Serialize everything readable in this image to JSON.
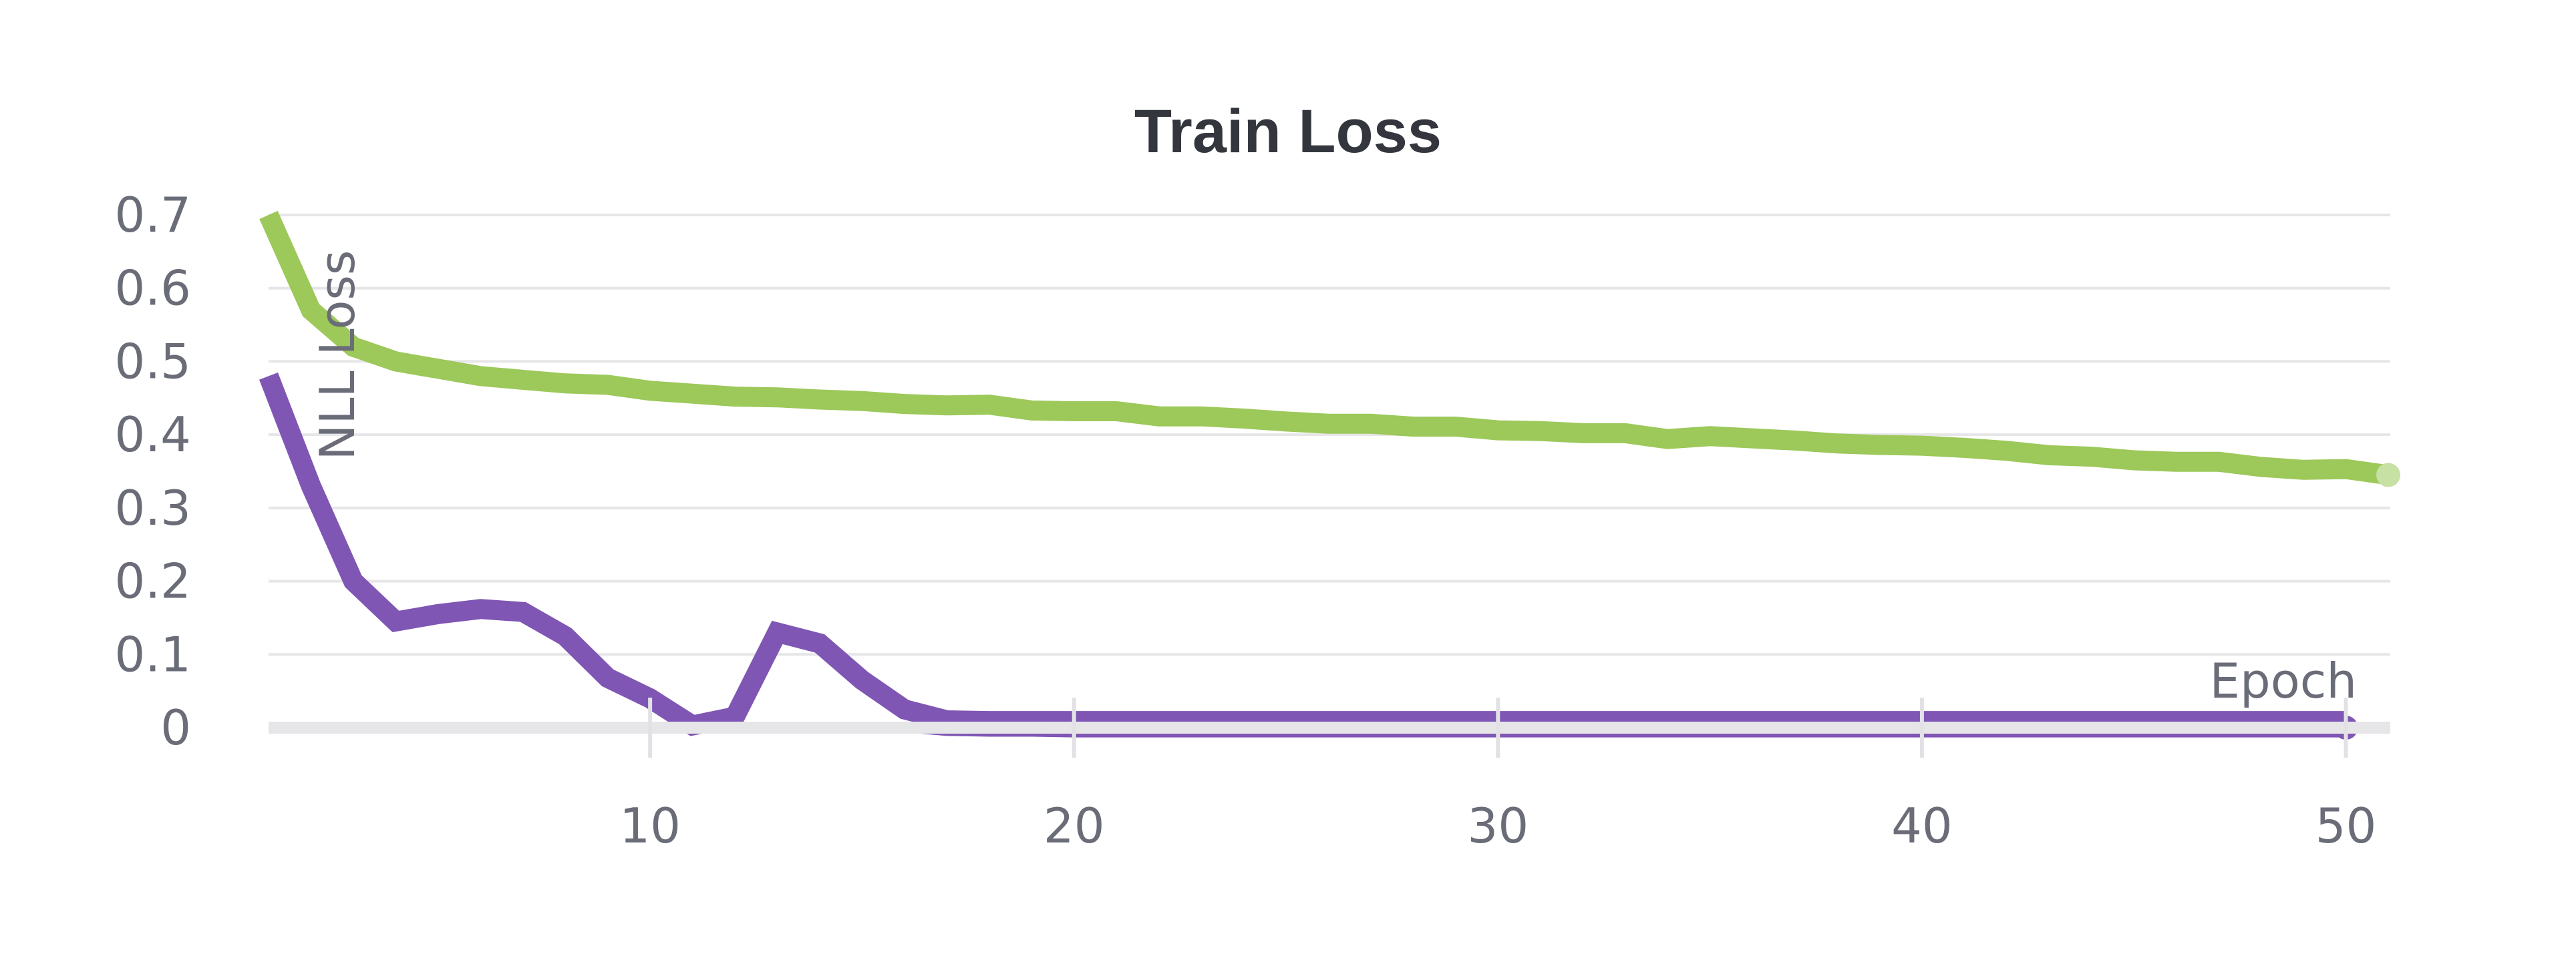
{
  "chart_data": {
    "type": "line",
    "title": "Train Loss",
    "xlabel": "Epoch",
    "ylabel": "NLL Loss",
    "xlim": [
      1,
      51
    ],
    "ylim": [
      0,
      0.7
    ],
    "x_ticks": [
      10,
      20,
      30,
      40,
      50
    ],
    "x_tick_labels": [
      "10",
      "20",
      "30",
      "40",
      "50"
    ],
    "y_ticks": [
      0,
      0.1,
      0.2,
      0.3,
      0.4,
      0.5,
      0.6,
      0.7
    ],
    "y_tick_labels": [
      "0",
      "0.1",
      "0.2",
      "0.3",
      "0.4",
      "0.5",
      "0.6",
      "0.7"
    ],
    "grid": "horizontal",
    "legend": "none",
    "series": [
      {
        "color": "#9dc85a",
        "x": [
          1,
          2,
          3,
          4,
          5,
          6,
          7,
          8,
          9,
          10,
          11,
          12,
          13,
          14,
          15,
          16,
          17,
          18,
          19,
          20,
          21,
          22,
          23,
          24,
          25,
          26,
          27,
          28,
          29,
          30,
          31,
          32,
          33,
          34,
          35,
          36,
          37,
          38,
          39,
          40,
          41,
          42,
          43,
          44,
          45,
          46,
          47,
          48,
          49,
          50,
          51
        ],
        "values": [
          0.7,
          0.57,
          0.52,
          0.5,
          0.49,
          0.48,
          0.475,
          0.47,
          0.468,
          0.46,
          0.456,
          0.452,
          0.451,
          0.448,
          0.446,
          0.442,
          0.44,
          0.441,
          0.433,
          0.432,
          0.432,
          0.425,
          0.425,
          0.422,
          0.418,
          0.415,
          0.415,
          0.411,
          0.411,
          0.406,
          0.405,
          0.402,
          0.402,
          0.394,
          0.398,
          0.395,
          0.392,
          0.388,
          0.386,
          0.385,
          0.382,
          0.378,
          0.372,
          0.37,
          0.365,
          0.363,
          0.363,
          0.356,
          0.352,
          0.353,
          0.345
        ]
      },
      {
        "color": "#7f56b4",
        "x": [
          1,
          2,
          3,
          4,
          5,
          6,
          7,
          8,
          9,
          10,
          11,
          12,
          13,
          14,
          15,
          16,
          17,
          18,
          19,
          20,
          21,
          22,
          23,
          24,
          25,
          26,
          27,
          28,
          29,
          30,
          31,
          32,
          33,
          34,
          35,
          36,
          37,
          38,
          39,
          40,
          41,
          42,
          43,
          44,
          45,
          46,
          47,
          48,
          49,
          50
        ],
        "values": [
          0.48,
          0.33,
          0.2,
          0.145,
          0.155,
          0.162,
          0.158,
          0.125,
          0.068,
          0.04,
          0.003,
          0.015,
          0.13,
          0.115,
          0.065,
          0.025,
          0.01,
          0.009,
          0.009,
          0.009,
          0.009,
          0.009,
          0.009,
          0.009,
          0.009,
          0.009,
          0.009,
          0.009,
          0.009,
          0.009,
          0.009,
          0.009,
          0.009,
          0.009,
          0.009,
          0.009,
          0.009,
          0.009,
          0.009,
          0.009,
          0.009,
          0.009,
          0.009,
          0.009,
          0.009,
          0.009,
          0.009,
          0.009,
          0.009,
          0.009
        ]
      },
      {
        "color": "#7f56b4",
        "x": [
          16,
          17,
          18,
          19,
          20,
          25,
          30,
          35,
          40,
          45,
          50
        ],
        "values": [
          0.001,
          -0.004,
          -0.005,
          -0.005,
          -0.006,
          -0.006,
          -0.006,
          -0.006,
          -0.006,
          -0.006,
          -0.006
        ]
      }
    ]
  }
}
